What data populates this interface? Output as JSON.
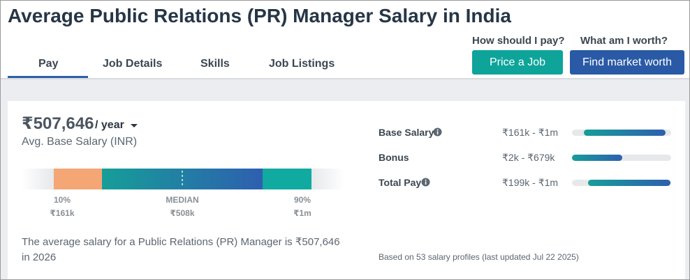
{
  "header": {
    "title": "Average Public Relations (PR) Manager Salary in India",
    "tabs": [
      "Pay",
      "Job Details",
      "Skills",
      "Job Listings"
    ],
    "actions": [
      {
        "prompt": "How should I pay?",
        "button": "Price a Job"
      },
      {
        "prompt": "What am I worth?",
        "button": "Find market worth"
      }
    ]
  },
  "summary": {
    "amount": "₹507,646",
    "period": "/ year",
    "label": "Avg. Base Salary (INR)",
    "percentiles": [
      {
        "label": "10%",
        "value": "₹161k"
      },
      {
        "label": "MEDIAN",
        "value": "₹508k"
      },
      {
        "label": "90%",
        "value": "₹1m"
      }
    ],
    "description": "The average salary for a Public Relations (PR) Manager is ₹507,646 in 2026"
  },
  "breakdown": {
    "rows": [
      {
        "label": "Base Salary",
        "range": "₹161k - ₹1m"
      },
      {
        "label": "Bonus",
        "range": "₹2k - ₹679k"
      },
      {
        "label": "Total Pay",
        "range": "₹199k - ₹1m"
      }
    ],
    "footnote": "Based on 53 salary profiles (last updated Jul 22 2025)"
  }
}
